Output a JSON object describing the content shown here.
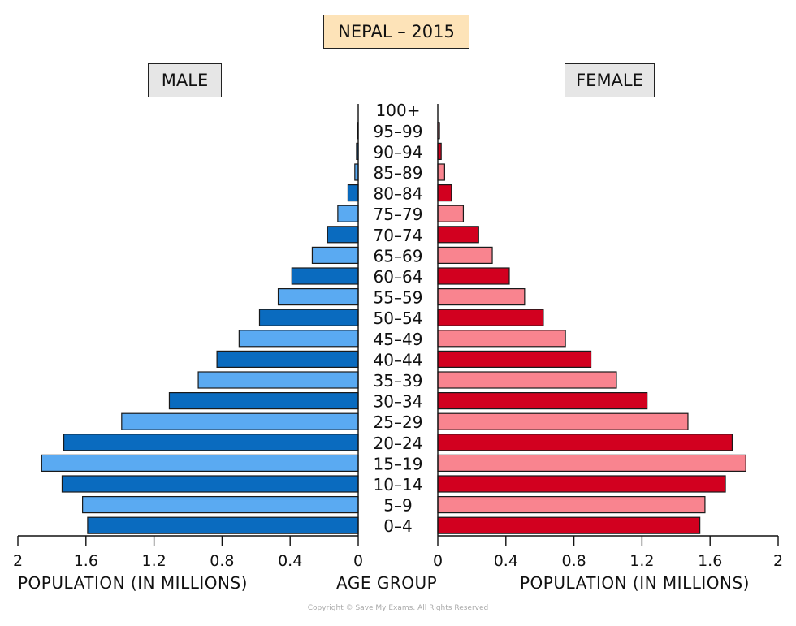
{
  "title": "NEPAL – 2015",
  "left_label": "MALE",
  "right_label": "FEMALE",
  "x_label_left": "POPULATION (IN MILLIONS)",
  "x_label_center": "AGE GROUP",
  "x_label_right": "POPULATION (IN MILLIONS)",
  "copyright": "Copyright © Save My Exams. All Rights Reserved",
  "colors": {
    "male_dark": "#0a6bbf",
    "male_light": "#5aaaf2",
    "female_dark": "#d2001f",
    "female_light": "#f9848f",
    "outline": "#1a1a1a"
  },
  "chart_data": {
    "type": "bar",
    "orientation": "horizontal-population-pyramid",
    "title": "NEPAL – 2015",
    "xlabel": "POPULATION (IN MILLIONS)",
    "ylabel": "AGE GROUP",
    "xlim": [
      0,
      2
    ],
    "x_ticks": [
      "2",
      "1.6",
      "1.2",
      "0.8",
      "0.4",
      "0",
      "0",
      "0.4",
      "0.8",
      "1.2",
      "1.6",
      "2"
    ],
    "categories": [
      "0–4",
      "5–9",
      "10–14",
      "15–19",
      "20–24",
      "25–29",
      "30–34",
      "35–39",
      "40–44",
      "45–49",
      "50–54",
      "55–59",
      "60–64",
      "65–69",
      "70–74",
      "75–79",
      "80–84",
      "85–89",
      "90–94",
      "95–99",
      "100+"
    ],
    "series": [
      {
        "name": "MALE",
        "values": [
          1.59,
          1.62,
          1.74,
          1.86,
          1.73,
          1.39,
          1.11,
          0.94,
          0.83,
          0.7,
          0.58,
          0.47,
          0.39,
          0.27,
          0.18,
          0.12,
          0.06,
          0.02,
          0.01,
          0.005,
          0.0
        ]
      },
      {
        "name": "FEMALE",
        "values": [
          1.54,
          1.57,
          1.69,
          1.81,
          1.73,
          1.47,
          1.23,
          1.05,
          0.9,
          0.75,
          0.62,
          0.51,
          0.42,
          0.32,
          0.24,
          0.15,
          0.08,
          0.04,
          0.02,
          0.01,
          0.0
        ]
      }
    ]
  }
}
